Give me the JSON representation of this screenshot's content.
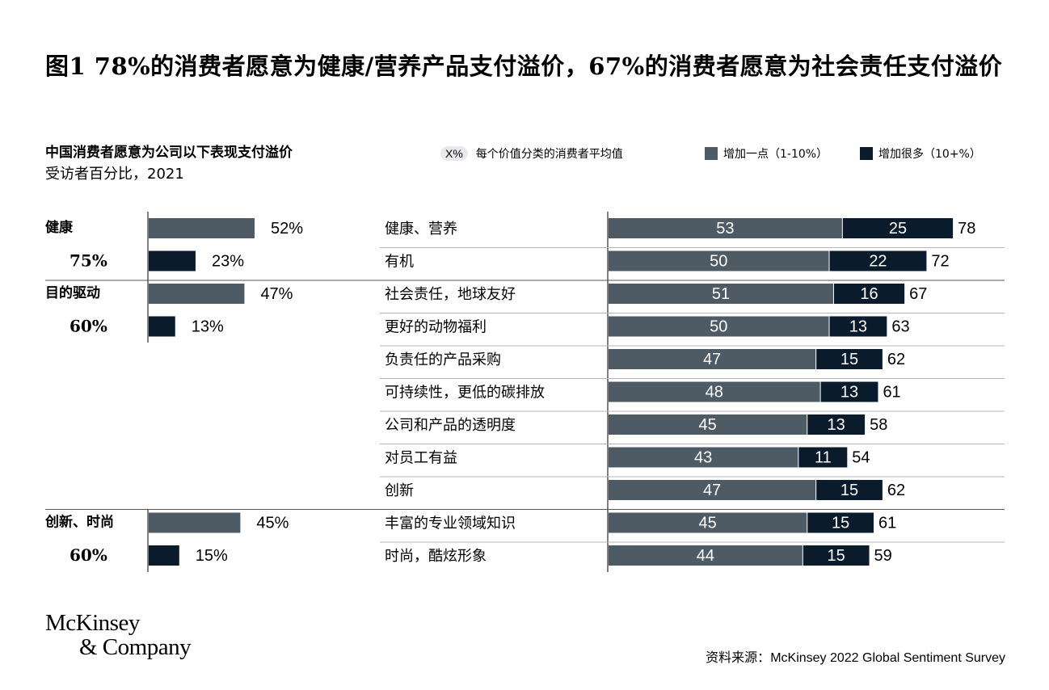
{
  "title": "图1 78%的消费者愿意为健康/营养产品支付溢价，67%的消费者愿意为社会责任支付溢价",
  "subtitle": "中国消费者愿意为公司以下表现支付溢价",
  "subtitle2": "受访者百分比，2021",
  "legend": {
    "avg_swatch": "X%",
    "avg_label": "每个价值分类的消费者平均值",
    "small_label": "增加一点（1-10%）",
    "large_label": "增加很多（10+%）"
  },
  "colors": {
    "small": "#4e5a64",
    "large": "#0a1b2c",
    "divider": "#b7b7b7",
    "avg_pill": "#e7e9ec"
  },
  "logo": {
    "line1": "McKinsey",
    "line2": "& Company"
  },
  "source": {
    "prefix": "资料来源：",
    "text": "McKinsey 2022 Global Sentiment Survey"
  },
  "chart_data": [
    {
      "type": "bar",
      "orientation": "horizontal",
      "groups": [
        {
          "category": "健康",
          "average": "75%",
          "small_label": "52%",
          "large_label": "23%",
          "small": 52,
          "large": 23
        },
        {
          "category": "目的驱动",
          "average": "60%",
          "small_label": "47%",
          "large_label": "13%",
          "small": 47,
          "large": 13
        },
        {
          "category": "创新、时尚",
          "average": "60%",
          "small_label": "45%",
          "large_label": "15%",
          "small": 45,
          "large": 15
        }
      ]
    },
    {
      "type": "bar",
      "orientation": "horizontal",
      "stacked": true,
      "series": [
        {
          "name": "增加一点（1-10%）",
          "values": [
            53,
            50,
            51,
            50,
            47,
            48,
            45,
            43,
            47,
            45,
            44
          ]
        },
        {
          "name": "增加很多（10+%）",
          "values": [
            25,
            22,
            16,
            13,
            15,
            13,
            13,
            11,
            15,
            15,
            15
          ]
        }
      ],
      "categories": [
        "健康、营养",
        "有机",
        "社会责任，地球友好",
        "更好的动物福利",
        "负责任的产品采购",
        "可持续性，更低的碳排放",
        "公司和产品的透明度",
        "对员工有益",
        "创新",
        "丰富的专业领域知识",
        "时尚，酷炫形象"
      ],
      "totals": [
        78,
        72,
        67,
        63,
        62,
        61,
        58,
        54,
        62,
        61,
        59
      ]
    }
  ]
}
